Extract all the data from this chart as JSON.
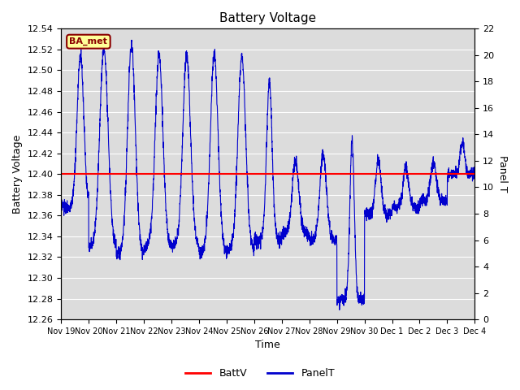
{
  "title": "Battery Voltage",
  "ylabel_left": "Battery Voltage",
  "ylabel_right": "Panel T",
  "xlabel": "Time",
  "ylim_left": [
    12.26,
    12.54
  ],
  "ylim_right": [
    0,
    22
  ],
  "yticks_left": [
    12.26,
    12.28,
    12.3,
    12.32,
    12.34,
    12.36,
    12.38,
    12.4,
    12.42,
    12.44,
    12.46,
    12.48,
    12.5,
    12.52,
    12.54
  ],
  "yticks_right": [
    0,
    2,
    4,
    6,
    8,
    10,
    12,
    14,
    16,
    18,
    20,
    22
  ],
  "battv_value": 12.4,
  "battv_color": "#ff0000",
  "panelt_color": "#0000cd",
  "bg_color": "#dcdcdc",
  "label_box_text": "BA_met",
  "label_box_facecolor": "#ffff99",
  "label_box_edgecolor": "#8b0000",
  "label_box_text_color": "#8b0000",
  "xtick_labels": [
    "Nov 19",
    "Nov 20",
    "Nov 21",
    "Nov 22",
    "Nov 23",
    "Nov 24",
    "Nov 25",
    "Nov 26",
    "Nov 27",
    "Nov 28",
    "Nov 29",
    "Nov 30",
    "Dec 1",
    "Dec 2",
    "Dec 3",
    "Dec 4"
  ],
  "grid_color": "#ffffff",
  "title_fontsize": 11,
  "axis_label_fontsize": 9,
  "tick_fontsize": 8,
  "legend_fontsize": 9
}
